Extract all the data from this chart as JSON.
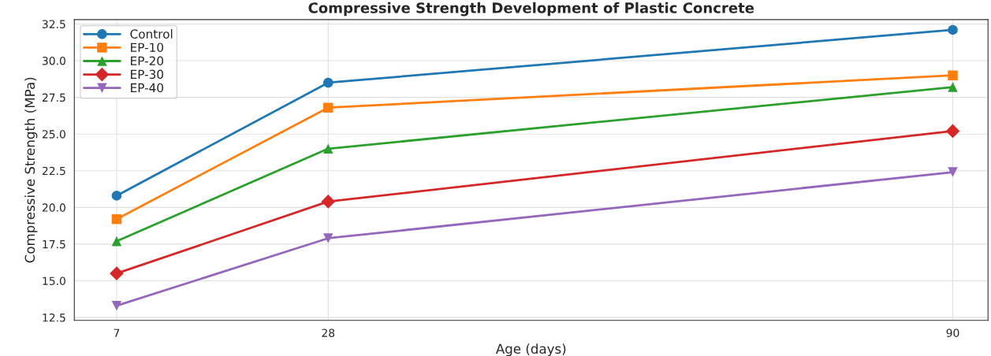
{
  "chart_data": {
    "type": "line",
    "title": "Compressive Strength Development of Plastic Concrete",
    "xlabel": "Age (days)",
    "ylabel": "Compressive Strength (MPa)",
    "x": [
      7,
      28,
      90
    ],
    "series": [
      {
        "name": "Control",
        "color": "#1f77b4",
        "marker": "circle",
        "values": [
          20.8,
          28.5,
          32.1
        ]
      },
      {
        "name": "EP-10",
        "color": "#ff7f0e",
        "marker": "square",
        "values": [
          19.2,
          26.8,
          29.0
        ]
      },
      {
        "name": "EP-20",
        "color": "#2ca02c",
        "marker": "triangle",
        "values": [
          17.7,
          24.0,
          28.2
        ]
      },
      {
        "name": "EP-30",
        "color": "#d62728",
        "marker": "diamond",
        "values": [
          15.5,
          20.4,
          25.2
        ]
      },
      {
        "name": "EP-40",
        "color": "#9467bd",
        "marker": "triangle_down",
        "values": [
          13.3,
          17.9,
          22.4
        ]
      }
    ],
    "xlim": [
      2.8,
      93.5
    ],
    "xticks": [
      7,
      28,
      90
    ],
    "ylim": [
      12.3,
      32.8
    ],
    "yticks": [
      12.5,
      {
        "value": 15,
        "label": "15.0"
      },
      17.5,
      {
        "value": 20,
        "label": "20.0"
      },
      22.5,
      {
        "value": 25,
        "label": "25.0"
      },
      27.5,
      {
        "value": 30,
        "label": "30.0"
      },
      32.5
    ],
    "grid": true,
    "legend": "top left",
    "line_style": "solid"
  }
}
